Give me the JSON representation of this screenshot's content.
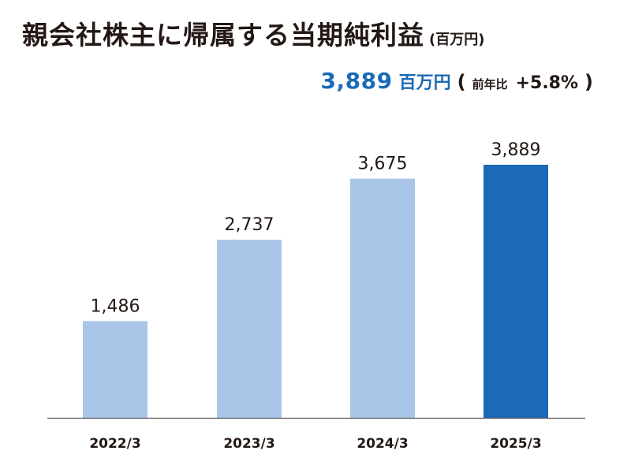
{
  "header": {
    "title": "親会社株主に帰属する当期純利益",
    "unit": "(百万円)"
  },
  "summary": {
    "value": "3,889",
    "unit": "百万円",
    "open_paren": "(",
    "yoy_label": "前年比",
    "yoy_value": "+5.8%",
    "close_paren": ")"
  },
  "colors": {
    "past_bar": "#a9c6e8",
    "current_bar": "#1b6ab5",
    "axis": "#555555",
    "accent_text": "#1b6ab5"
  },
  "chart_data": {
    "type": "bar",
    "title": "親会社株主に帰属する当期純利益",
    "unit": "百万円",
    "categories": [
      "2022/3",
      "2023/3",
      "2024/3",
      "2025/3"
    ],
    "values": [
      1486,
      2737,
      3675,
      3889
    ],
    "value_labels": [
      "1,486",
      "2,737",
      "3,675",
      "3,889"
    ],
    "highlight_index": 3,
    "xlabel": "",
    "ylabel": "",
    "ylim": [
      0,
      4000
    ],
    "grid": false,
    "legend": "none"
  }
}
